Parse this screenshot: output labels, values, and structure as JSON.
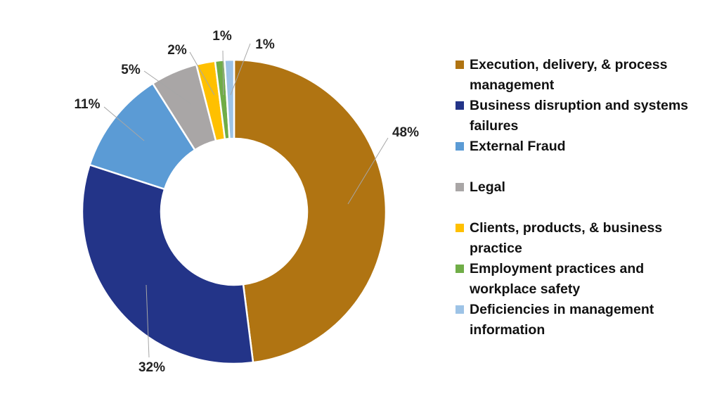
{
  "chart_data": {
    "type": "pie",
    "donut": true,
    "start": "top",
    "direction": "clockwise",
    "legend_position": "right",
    "slices": [
      {
        "label": "Execution, delivery, & process management",
        "value": 48,
        "data_label": "48%",
        "color": "#B07412"
      },
      {
        "label": "Business disruption and systems failures",
        "value": 32,
        "data_label": "32%",
        "color": "#233488"
      },
      {
        "label": "External Fraud",
        "value": 11,
        "data_label": "11%",
        "color": "#5B9BD5"
      },
      {
        "label": "Legal",
        "value": 5,
        "data_label": "5%",
        "color": "#A9A6A6"
      },
      {
        "label": "Clients, products, & business practice",
        "value": 2,
        "data_label": "2%",
        "color": "#FFC000"
      },
      {
        "label": "Employment practices and workplace safety",
        "value": 1,
        "data_label": "1%",
        "color": "#70AD47"
      },
      {
        "label": "Deficiencies in management information",
        "value": 1,
        "data_label": "1%",
        "color": "#9DC3E6"
      }
    ]
  }
}
